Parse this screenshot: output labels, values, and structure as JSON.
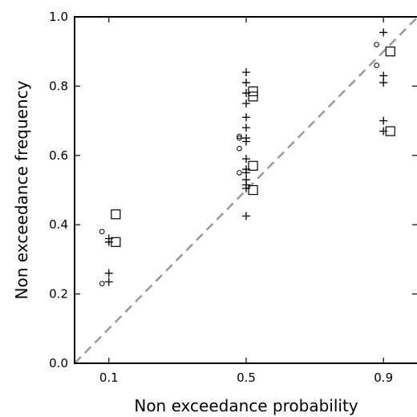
{
  "chart_data": {
    "type": "scatter",
    "title": "",
    "xlabel": "Non exceedance probability",
    "ylabel": "Non exceedance frequency",
    "xlim": [
      0.0,
      1.0
    ],
    "ylim": [
      0.0,
      1.0
    ],
    "xticks": [
      0.1,
      0.5,
      0.9
    ],
    "xtick_labels": [
      "0.1",
      "0.5",
      "0.9"
    ],
    "yticks": [
      0.0,
      0.2,
      0.4,
      0.6,
      0.8,
      1.0
    ],
    "ytick_labels": [
      "0.0",
      "0.2",
      "0.4",
      "0.6",
      "0.8",
      "1.0"
    ],
    "grid": false,
    "legend": "none",
    "reference_line": {
      "from": [
        0.0,
        0.0
      ],
      "to": [
        1.0,
        1.0
      ],
      "style": "dashed",
      "color": "#999999"
    },
    "series": [
      {
        "marker": "plus",
        "color": "#000000",
        "points": [
          [
            0.1,
            0.36
          ],
          [
            0.1,
            0.35
          ],
          [
            0.1,
            0.26
          ],
          [
            0.1,
            0.235
          ],
          [
            0.5,
            0.84
          ],
          [
            0.5,
            0.81
          ],
          [
            0.5,
            0.78
          ],
          [
            0.5,
            0.75
          ],
          [
            0.5,
            0.71
          ],
          [
            0.5,
            0.68
          ],
          [
            0.5,
            0.65
          ],
          [
            0.5,
            0.64
          ],
          [
            0.5,
            0.59
          ],
          [
            0.5,
            0.56
          ],
          [
            0.5,
            0.55
          ],
          [
            0.5,
            0.53
          ],
          [
            0.5,
            0.515
          ],
          [
            0.5,
            0.505
          ],
          [
            0.5,
            0.425
          ],
          [
            0.9,
            0.955
          ],
          [
            0.9,
            0.83
          ],
          [
            0.9,
            0.81
          ],
          [
            0.9,
            0.7
          ],
          [
            0.9,
            0.67
          ]
        ]
      },
      {
        "marker": "circle",
        "color": "#000000",
        "points": [
          [
            0.08,
            0.38
          ],
          [
            0.08,
            0.23
          ],
          [
            0.48,
            0.655
          ],
          [
            0.48,
            0.65
          ],
          [
            0.48,
            0.62
          ],
          [
            0.48,
            0.55
          ],
          [
            0.88,
            0.92
          ],
          [
            0.88,
            0.86
          ]
        ]
      },
      {
        "marker": "square",
        "color": "#000000",
        "points": [
          [
            0.12,
            0.43
          ],
          [
            0.12,
            0.35
          ],
          [
            0.52,
            0.785
          ],
          [
            0.52,
            0.77
          ],
          [
            0.52,
            0.57
          ],
          [
            0.52,
            0.5
          ],
          [
            0.92,
            0.9
          ],
          [
            0.92,
            0.67
          ]
        ]
      }
    ]
  }
}
